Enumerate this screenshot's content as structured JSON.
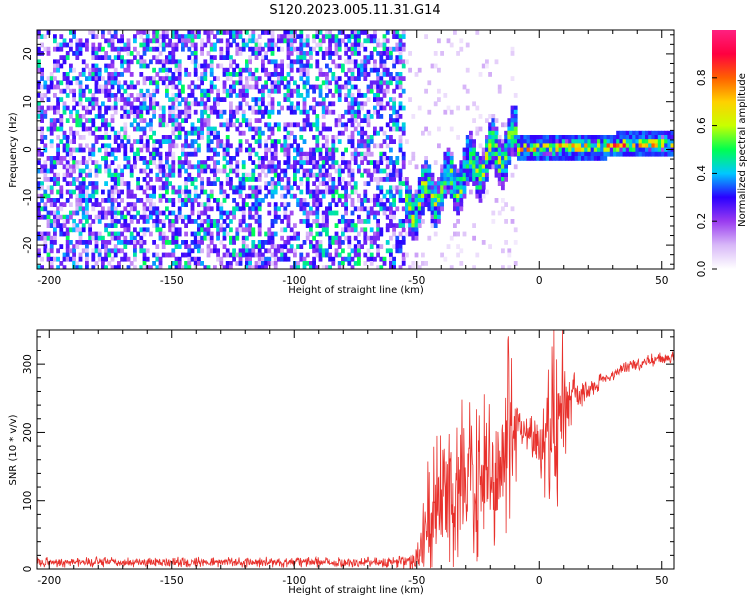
{
  "title": "S120.2023.005.11.31.G14",
  "chart_data": [
    {
      "type": "heatmap",
      "xlabel": "Height of straight line (km)",
      "ylabel": "Frequency (Hz)",
      "xlim": [
        -205,
        55
      ],
      "ylim": [
        -25,
        25
      ],
      "x_ticks": [
        -200,
        -150,
        -100,
        -50,
        0,
        50
      ],
      "y_ticks": [
        -20,
        -10,
        0,
        10,
        20
      ],
      "colorbar": {
        "label": "Normalized spectral amplitude",
        "range": [
          0,
          1
        ],
        "ticks": [
          0.0,
          0.2,
          0.4,
          0.6,
          0.8
        ],
        "colors": [
          "#ffffff",
          "#d8b8f8",
          "#9a3cf0",
          "#2a00ff",
          "#00c8ff",
          "#00ff50",
          "#c8ff00",
          "#ffd000",
          "#ff6000",
          "#ff0040",
          "#ff2080"
        ]
      },
      "features": {
        "noise_region_x": [
          -205,
          -55
        ],
        "noise_level": 0.3,
        "transition_region_x": [
          -55,
          -10
        ],
        "transition_freq_start": -12,
        "transition_freq_end": 2,
        "tone_region_x": [
          -10,
          55
        ],
        "tone_freq_start": 0.5,
        "tone_freq_end": 1.8,
        "tone_peak_amplitude": 0.95
      }
    },
    {
      "type": "line",
      "xlabel": "Height of straight line (km)",
      "ylabel": "SNR (10 * v/v)",
      "xlim": [
        -205,
        55
      ],
      "ylim": [
        0,
        350
      ],
      "x_ticks": [
        -200,
        -150,
        -100,
        -50,
        0,
        50
      ],
      "y_ticks": [
        0,
        100,
        200,
        300
      ],
      "series": [
        {
          "color": "#e8312c",
          "x": [
            -205,
            -150,
            -100,
            -60,
            -52,
            -48,
            -45,
            -40,
            -35,
            -30,
            -25,
            -20,
            -15,
            -12,
            -10,
            -8,
            -5,
            -2,
            0,
            2,
            5,
            8,
            10,
            12,
            15,
            20,
            25,
            30,
            35,
            40,
            45,
            50,
            55
          ],
          "y": [
            10,
            10,
            10,
            10,
            12,
            30,
            70,
            110,
            120,
            120,
            130,
            140,
            150,
            180,
            200,
            215,
            200,
            190,
            180,
            200,
            210,
            230,
            240,
            250,
            255,
            260,
            275,
            285,
            295,
            300,
            305,
            308,
            310
          ],
          "noise_amplitude": [
            8,
            8,
            8,
            8,
            15,
            60,
            100,
            130,
            130,
            130,
            130,
            120,
            120,
            180,
            100,
            40,
            30,
            40,
            60,
            100,
            150,
            200,
            120,
            50,
            30,
            15,
            12,
            10,
            10,
            10,
            10,
            10,
            10
          ]
        }
      ]
    }
  ]
}
